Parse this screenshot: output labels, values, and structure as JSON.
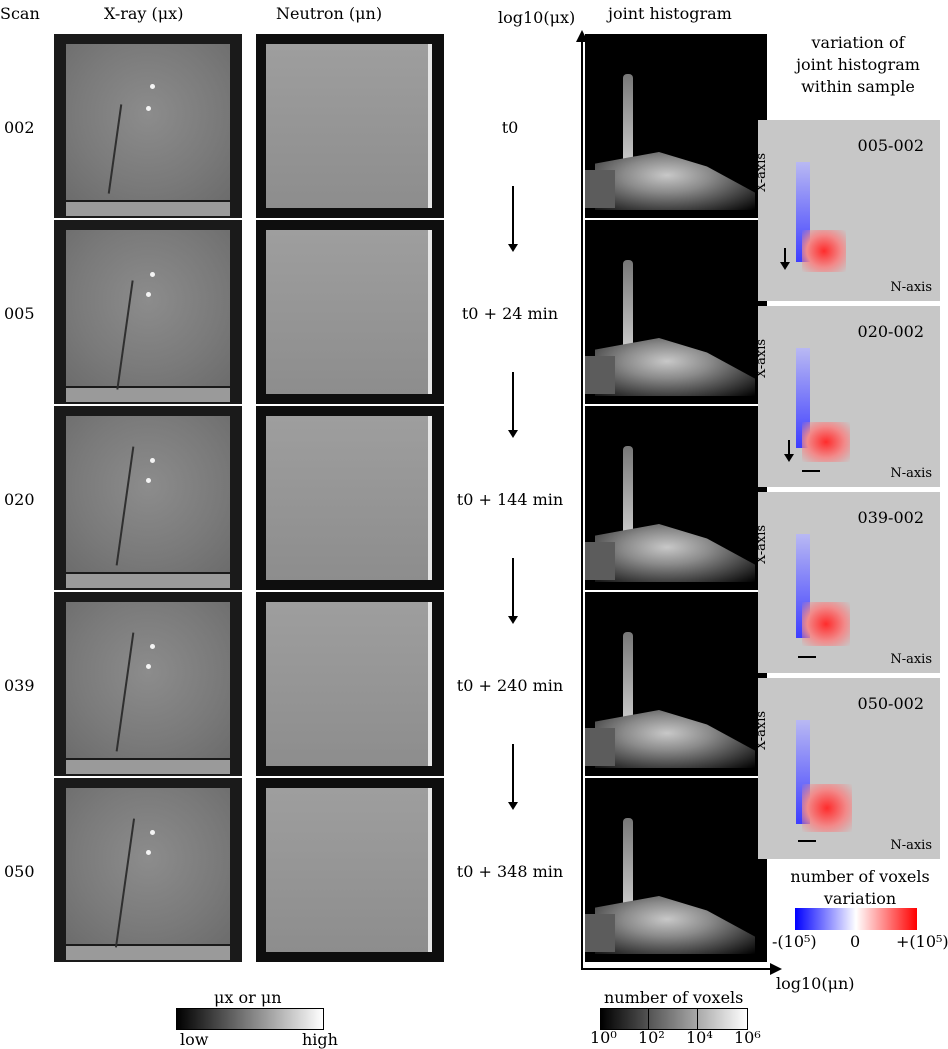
{
  "headers": {
    "scan": "Scan",
    "xray": "X-ray (μx)",
    "neutron": "Neutron (μn)",
    "yaxis": "log10(μx)",
    "joint": "joint histogram",
    "variation": [
      "variation of",
      "joint histogram",
      "within sample"
    ]
  },
  "scans": [
    {
      "id": "002",
      "time": "t0"
    },
    {
      "id": "005",
      "time": "t0 + 24 min"
    },
    {
      "id": "020",
      "time": "t0 + 144 min"
    },
    {
      "id": "039",
      "time": "t0 + 240 min"
    },
    {
      "id": "050",
      "time": "t0 + 348 min"
    }
  ],
  "variation_panels": [
    {
      "title": "005-002",
      "xaxis": "X-axis",
      "naxis": "N-axis"
    },
    {
      "title": "020-002",
      "xaxis": "X-axis",
      "naxis": "N-axis"
    },
    {
      "title": "039-002",
      "xaxis": "X-axis",
      "naxis": "N-axis"
    },
    {
      "title": "050-002",
      "xaxis": "X-axis",
      "naxis": "N-axis"
    }
  ],
  "xaxis_label": "log10(μn)",
  "colorbar_gray": {
    "title": "μx or μn",
    "low": "low",
    "high": "high"
  },
  "colorbar_count": {
    "title": "number of voxels",
    "ticks": [
      "10⁰",
      "10²",
      "10⁴",
      "10⁶"
    ]
  },
  "colorbar_var": {
    "title": [
      "number of voxels",
      "variation"
    ],
    "ticks": [
      "-(10⁵)",
      "0",
      "+(10⁵)"
    ]
  },
  "colors": {
    "negative": "#0000ff",
    "positive": "#ff0000",
    "panel_bg": "#c7c7c7"
  }
}
